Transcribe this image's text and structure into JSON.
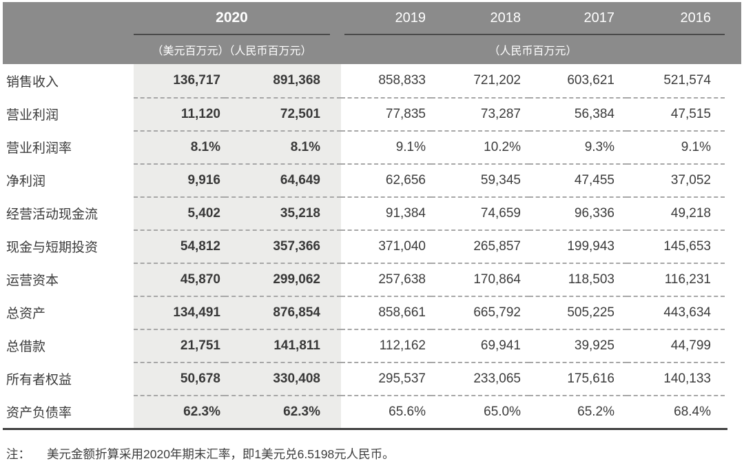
{
  "header": {
    "group2020": {
      "year": "2020",
      "units": "（美元百万元）（人民币百万元）"
    },
    "years": [
      "2019",
      "2018",
      "2017",
      "2016"
    ],
    "units_right": "（人民币百万元）"
  },
  "table": {
    "rows": [
      {
        "label": "销售收入",
        "usd2020": "136,717",
        "rmb2020": "891,368",
        "y2019": "858,833",
        "y2018": "721,202",
        "y2017": "603,621",
        "y2016": "521,574"
      },
      {
        "label": "营业利润",
        "usd2020": "11,120",
        "rmb2020": "72,501",
        "y2019": "77,835",
        "y2018": "73,287",
        "y2017": "56,384",
        "y2016": "47,515"
      },
      {
        "label": "营业利润率",
        "usd2020": "8.1%",
        "rmb2020": "8.1%",
        "y2019": "9.1%",
        "y2018": "10.2%",
        "y2017": "9.3%",
        "y2016": "9.1%"
      },
      {
        "label": "净利润",
        "usd2020": "9,916",
        "rmb2020": "64,649",
        "y2019": "62,656",
        "y2018": "59,345",
        "y2017": "47,455",
        "y2016": "37,052"
      },
      {
        "label": "经营活动现金流",
        "usd2020": "5,402",
        "rmb2020": "35,218",
        "y2019": "91,384",
        "y2018": "74,659",
        "y2017": "96,336",
        "y2016": "49,218"
      },
      {
        "label": "现金与短期投资",
        "usd2020": "54,812",
        "rmb2020": "357,366",
        "y2019": "371,040",
        "y2018": "265,857",
        "y2017": "199,943",
        "y2016": "145,653"
      },
      {
        "label": "运营资本",
        "usd2020": "45,870",
        "rmb2020": "299,062",
        "y2019": "257,638",
        "y2018": "170,864",
        "y2017": "118,503",
        "y2016": "116,231"
      },
      {
        "label": "总资产",
        "usd2020": "134,491",
        "rmb2020": "876,854",
        "y2019": "858,661",
        "y2018": "665,792",
        "y2017": "505,225",
        "y2016": "443,634"
      },
      {
        "label": "总借款",
        "usd2020": "21,751",
        "rmb2020": "141,811",
        "y2019": "112,162",
        "y2018": "69,941",
        "y2017": "39,925",
        "y2016": "44,799"
      },
      {
        "label": "所有者权益",
        "usd2020": "50,678",
        "rmb2020": "330,408",
        "y2019": "295,537",
        "y2018": "233,065",
        "y2017": "175,616",
        "y2016": "140,133"
      },
      {
        "label": "资产负债率",
        "usd2020": "62.3%",
        "rmb2020": "62.3%",
        "y2019": "65.6%",
        "y2018": "65.0%",
        "y2017": "65.2%",
        "y2016": "68.4%"
      }
    ]
  },
  "note": {
    "label": "注：",
    "text": "美元金额折算采用2020年期末汇率，即1美元兑6.5198元人民币。"
  },
  "colors": {
    "header_bg": "#8b8b8b",
    "highlight_bg": "#ececea",
    "rule_dark": "#3d3d3d",
    "text": "#3b3b3b"
  }
}
